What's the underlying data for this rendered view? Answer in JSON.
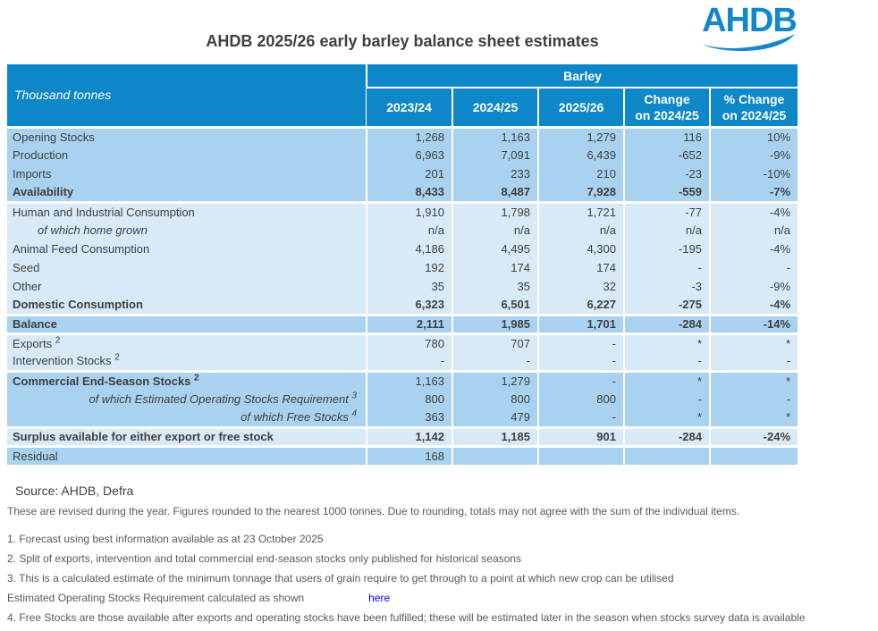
{
  "title": "AHDB 2025/26 early barley balance sheet estimates",
  "logo": {
    "text": "AHDB"
  },
  "table": {
    "unit_label": "Thousand tonnes",
    "group_header": "Barley",
    "columns": [
      "2023/24",
      "2024/25",
      "2025/26",
      "Change\non 2024/25",
      "% Change\non 2024/25"
    ],
    "sections": [
      {
        "band": "medium",
        "rows": [
          {
            "label": "Opening Stocks",
            "values": [
              "1,268",
              "1,163",
              "1,279",
              "116",
              "10%"
            ]
          },
          {
            "label": "Production",
            "values": [
              "6,963",
              "7,091",
              "6,439",
              "-652",
              "-9%"
            ]
          },
          {
            "label": "Imports",
            "values": [
              "201",
              "233",
              "210",
              "-23",
              "-10%"
            ]
          },
          {
            "label": "Availability",
            "bold": true,
            "values": [
              "8,433",
              "8,487",
              "7,928",
              "-559",
              "-7%"
            ]
          }
        ]
      },
      {
        "band": "light",
        "rows": [
          {
            "label": "Human and Industrial Consumption",
            "values": [
              "1,910",
              "1,798",
              "1,721",
              "-77",
              "-4%"
            ]
          },
          {
            "label": "of which home grown",
            "italic": true,
            "indent": true,
            "values": [
              "n/a",
              "n/a",
              "n/a",
              "n/a",
              "n/a"
            ]
          },
          {
            "label": "Animal Feed Consumption",
            "values": [
              "4,186",
              "4,495",
              "4,300",
              "-195",
              "-4%"
            ]
          },
          {
            "label": "Seed",
            "values": [
              "192",
              "174",
              "174",
              "-",
              "-"
            ]
          },
          {
            "label": "Other",
            "values": [
              "35",
              "35",
              "32",
              "-3",
              "-9%"
            ]
          },
          {
            "label": "Domestic Consumption",
            "bold": true,
            "values": [
              "6,323",
              "6,501",
              "6,227",
              "-275",
              "-4%"
            ]
          }
        ]
      },
      {
        "band": "medium",
        "rows": [
          {
            "label": "Balance",
            "bold": true,
            "values": [
              "2,111",
              "1,985",
              "1,701",
              "-284",
              "-14%"
            ]
          }
        ]
      },
      {
        "band": "light",
        "rows": [
          {
            "label": "Exports",
            "sup": "2",
            "values": [
              "780",
              "707",
              "-",
              "*",
              "*"
            ]
          },
          {
            "label": "Intervention Stocks",
            "sup": "2",
            "values": [
              "-",
              "-",
              "-",
              "-",
              "-"
            ]
          }
        ]
      },
      {
        "band": "medium",
        "rows": [
          {
            "label": "Commercial End-Season Stocks",
            "sup": "2",
            "bold_label": true,
            "values": [
              "1,163",
              "1,279",
              "-",
              "*",
              "*"
            ]
          },
          {
            "label": "of which Estimated Operating Stocks Requirement",
            "sup": "3",
            "italic": true,
            "align_right": true,
            "values": [
              "800",
              "800",
              "800",
              "-",
              "-"
            ]
          },
          {
            "label": "of which Free Stocks",
            "sup": "4",
            "italic": true,
            "align_right": true,
            "values": [
              "363",
              "479",
              "-",
              "*",
              "*"
            ]
          }
        ]
      },
      {
        "band": "light",
        "rows": [
          {
            "label": "Surplus available for either export or free stock",
            "bold": true,
            "values": [
              "1,142",
              "1,185",
              "901",
              "-284",
              "-24%"
            ]
          }
        ]
      },
      {
        "band": "medium",
        "rows": [
          {
            "label": "Residual",
            "values": [
              "168",
              "",
              "",
              "",
              ""
            ]
          }
        ]
      }
    ]
  },
  "source": "Source: AHDB, Defra",
  "notes": [
    {
      "text": "These are revised during the year. Figures rounded to the nearest 1000 tonnes. Due to rounding, totals may not agree with the sum of the individual items."
    },
    {
      "text": "1. Forecast using best information available as at 23 October 2025"
    },
    {
      "text": "2. Split of exports, intervention and total commercial end-season stocks only published for historical seasons"
    },
    {
      "text": "3. This is a calculated estimate of the minimum tonnage that users of grain require to get through to a point at which new crop can be utilised"
    },
    {
      "text": "Estimated Operating Stocks Requirement calculated as shown",
      "link": "here"
    },
    {
      "text": "4. Free Stocks are those available after exports and operating stocks have been fulfilled; these will be estimated later in the season when stocks survey data is available"
    }
  ],
  "colors": {
    "header_blue": "#0E87C8",
    "band_medium": "#A9D2F0",
    "band_light": "#D8EAF8",
    "text": "#404040",
    "note_gray": "#595959",
    "link_blue": "#0000FF",
    "logo_blue": "#1287C9"
  }
}
